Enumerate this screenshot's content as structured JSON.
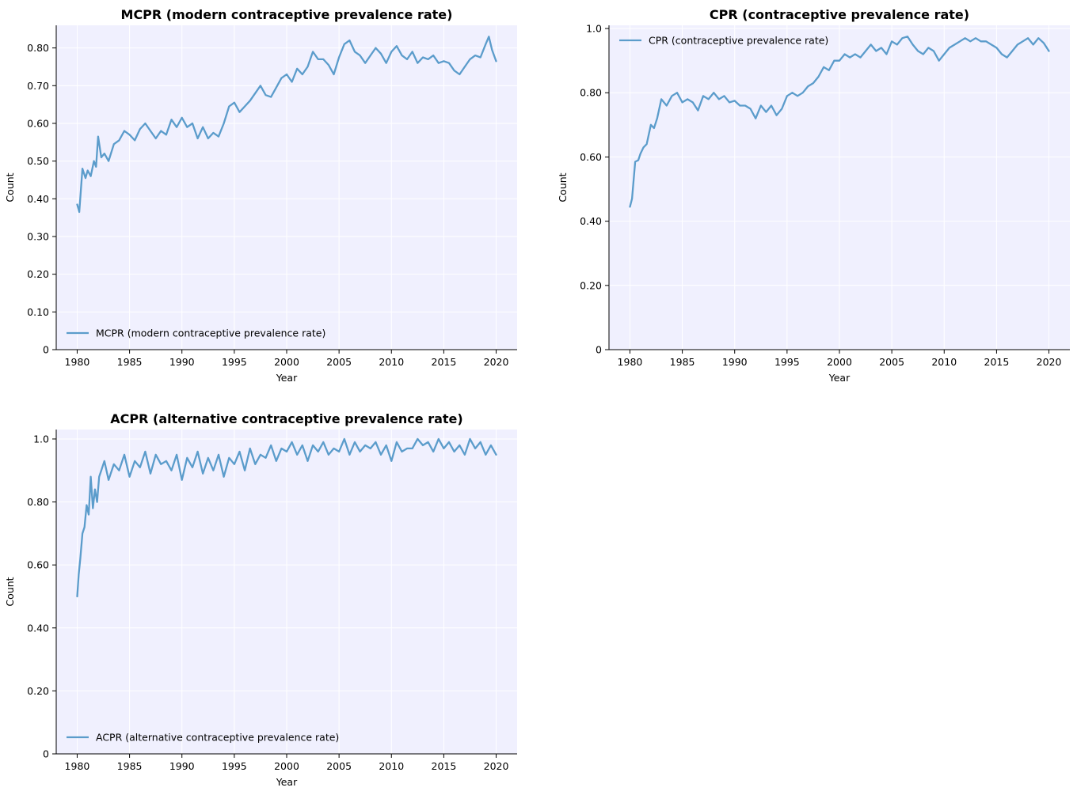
{
  "chart_data": [
    {
      "type": "line",
      "title": "MCPR (modern contraceptive prevalence rate)",
      "xlabel": "Year",
      "ylabel": "Count",
      "xlim": [
        1978,
        2022
      ],
      "ylim": [
        0,
        0.86
      ],
      "xticks": [
        1980,
        1985,
        1990,
        1995,
        2000,
        2005,
        2010,
        2015,
        2020
      ],
      "yticks": [
        0,
        0.1,
        0.2,
        0.3,
        0.4,
        0.5,
        0.6,
        0.7,
        0.8
      ],
      "ytick_labels": [
        "0",
        "0.10",
        "0.20",
        "0.30",
        "0.40",
        "0.50",
        "0.60",
        "0.70",
        "0.80"
      ],
      "grid": true,
      "legend": "lower-left",
      "color": "#5b9ccb",
      "series": [
        {
          "name": "MCPR (modern contraceptive prevalence rate)",
          "x": [
            1980,
            1980.2,
            1980.5,
            1980.8,
            1981,
            1981.3,
            1981.6,
            1981.8,
            1982,
            1982.3,
            1982.6,
            1983,
            1983.5,
            1984,
            1984.5,
            1985,
            1985.5,
            1986,
            1986.5,
            1987,
            1987.5,
            1988,
            1988.5,
            1989,
            1989.5,
            1990,
            1990.5,
            1991,
            1991.5,
            1992,
            1992.5,
            1993,
            1993.5,
            1994,
            1994.5,
            1995,
            1995.5,
            1996,
            1996.5,
            1997,
            1997.5,
            1998,
            1998.5,
            1999,
            1999.5,
            2000,
            2000.5,
            2001,
            2001.5,
            2002,
            2002.5,
            2003,
            2003.5,
            2004,
            2004.5,
            2005,
            2005.5,
            2006,
            2006.5,
            2007,
            2007.5,
            2008,
            2008.5,
            2009,
            2009.5,
            2010,
            2010.5,
            2011,
            2011.5,
            2012,
            2012.5,
            2013,
            2013.5,
            2014,
            2014.5,
            2015,
            2015.5,
            2016,
            2016.5,
            2017,
            2017.5,
            2018,
            2018.5,
            2019,
            2019.3,
            2019.6,
            2020
          ],
          "y": [
            0.385,
            0.365,
            0.48,
            0.455,
            0.475,
            0.46,
            0.5,
            0.485,
            0.565,
            0.51,
            0.52,
            0.5,
            0.545,
            0.555,
            0.58,
            0.57,
            0.555,
            0.585,
            0.6,
            0.58,
            0.56,
            0.58,
            0.57,
            0.61,
            0.59,
            0.615,
            0.59,
            0.6,
            0.56,
            0.59,
            0.56,
            0.575,
            0.565,
            0.6,
            0.645,
            0.655,
            0.63,
            0.645,
            0.66,
            0.68,
            0.7,
            0.675,
            0.67,
            0.695,
            0.72,
            0.73,
            0.71,
            0.745,
            0.73,
            0.75,
            0.79,
            0.77,
            0.77,
            0.755,
            0.73,
            0.775,
            0.81,
            0.82,
            0.79,
            0.78,
            0.76,
            0.78,
            0.8,
            0.785,
            0.76,
            0.79,
            0.805,
            0.78,
            0.77,
            0.79,
            0.76,
            0.775,
            0.77,
            0.78,
            0.76,
            0.765,
            0.76,
            0.74,
            0.73,
            0.75,
            0.77,
            0.78,
            0.775,
            0.81,
            0.83,
            0.795,
            0.765
          ]
        }
      ]
    },
    {
      "type": "line",
      "title": "CPR (contraceptive prevalence rate)",
      "xlabel": "Year",
      "ylabel": "Count",
      "xlim": [
        1978,
        2022
      ],
      "ylim": [
        0,
        1.01
      ],
      "xticks": [
        1980,
        1985,
        1990,
        1995,
        2000,
        2005,
        2010,
        2015,
        2020
      ],
      "yticks": [
        0,
        0.2,
        0.4,
        0.6,
        0.8,
        1.0
      ],
      "ytick_labels": [
        "0",
        "0.20",
        "0.40",
        "0.60",
        "0.80",
        "1.0"
      ],
      "grid": true,
      "legend": "upper-left",
      "color": "#5b9ccb",
      "series": [
        {
          "name": "CPR (contraceptive prevalence rate)",
          "x": [
            1980,
            1980.2,
            1980.5,
            1980.8,
            1981,
            1981.3,
            1981.6,
            1982,
            1982.3,
            1982.6,
            1983,
            1983.5,
            1984,
            1984.5,
            1985,
            1985.5,
            1986,
            1986.5,
            1987,
            1987.5,
            1988,
            1988.5,
            1989,
            1989.5,
            1990,
            1990.5,
            1991,
            1991.5,
            1992,
            1992.5,
            1993,
            1993.5,
            1994,
            1994.5,
            1995,
            1995.5,
            1996,
            1996.5,
            1997,
            1997.5,
            1998,
            1998.5,
            1999,
            1999.5,
            2000,
            2000.5,
            2001,
            2001.5,
            2002,
            2002.5,
            2003,
            2003.5,
            2004,
            2004.5,
            2005,
            2005.5,
            2006,
            2006.5,
            2007,
            2007.5,
            2008,
            2008.5,
            2009,
            2009.5,
            2010,
            2010.5,
            2011,
            2011.5,
            2012,
            2012.5,
            2013,
            2013.5,
            2014,
            2014.5,
            2015,
            2015.5,
            2016,
            2016.5,
            2017,
            2017.5,
            2018,
            2018.5,
            2019,
            2019.5,
            2020
          ],
          "y": [
            0.445,
            0.47,
            0.585,
            0.59,
            0.61,
            0.63,
            0.64,
            0.7,
            0.69,
            0.72,
            0.78,
            0.76,
            0.79,
            0.8,
            0.77,
            0.78,
            0.77,
            0.745,
            0.79,
            0.78,
            0.8,
            0.78,
            0.79,
            0.77,
            0.775,
            0.76,
            0.76,
            0.75,
            0.72,
            0.76,
            0.74,
            0.76,
            0.73,
            0.75,
            0.79,
            0.8,
            0.79,
            0.8,
            0.82,
            0.83,
            0.85,
            0.88,
            0.87,
            0.9,
            0.9,
            0.92,
            0.91,
            0.92,
            0.91,
            0.93,
            0.95,
            0.93,
            0.94,
            0.92,
            0.96,
            0.95,
            0.97,
            0.975,
            0.95,
            0.93,
            0.92,
            0.94,
            0.93,
            0.9,
            0.92,
            0.94,
            0.95,
            0.96,
            0.97,
            0.96,
            0.97,
            0.96,
            0.96,
            0.95,
            0.94,
            0.92,
            0.91,
            0.93,
            0.95,
            0.96,
            0.97,
            0.95,
            0.97,
            0.955,
            0.93
          ]
        }
      ]
    },
    {
      "type": "line",
      "title": "ACPR (alternative contraceptive prevalence rate)",
      "xlabel": "Year",
      "ylabel": "Count",
      "xlim": [
        1978,
        2022
      ],
      "ylim": [
        0,
        1.03
      ],
      "xticks": [
        1980,
        1985,
        1990,
        1995,
        2000,
        2005,
        2010,
        2015,
        2020
      ],
      "yticks": [
        0,
        0.2,
        0.4,
        0.6,
        0.8,
        1.0
      ],
      "ytick_labels": [
        "0",
        "0.20",
        "0.40",
        "0.60",
        "0.80",
        "1.0"
      ],
      "grid": true,
      "legend": "lower-left",
      "color": "#5b9ccb",
      "series": [
        {
          "name": "ACPR (alternative contraceptive prevalence rate)",
          "x": [
            1980,
            1980.15,
            1980.3,
            1980.5,
            1980.7,
            1980.9,
            1981.1,
            1981.3,
            1981.5,
            1981.7,
            1981.9,
            1982.1,
            1982.3,
            1982.6,
            1983,
            1983.5,
            1984,
            1984.5,
            1985,
            1985.5,
            1986,
            1986.5,
            1987,
            1987.5,
            1988,
            1988.5,
            1989,
            1989.5,
            1990,
            1990.5,
            1991,
            1991.5,
            1992,
            1992.5,
            1993,
            1993.5,
            1994,
            1994.5,
            1995,
            1995.5,
            1996,
            1996.5,
            1997,
            1997.5,
            1998,
            1998.5,
            1999,
            1999.5,
            2000,
            2000.5,
            2001,
            2001.5,
            2002,
            2002.5,
            2003,
            2003.5,
            2004,
            2004.5,
            2005,
            2005.5,
            2006,
            2006.5,
            2007,
            2007.5,
            2008,
            2008.5,
            2009,
            2009.5,
            2010,
            2010.5,
            2011,
            2011.5,
            2012,
            2012.5,
            2013,
            2013.5,
            2014,
            2014.5,
            2015,
            2015.5,
            2016,
            2016.5,
            2017,
            2017.5,
            2018,
            2018.5,
            2019,
            2019.5,
            2020
          ],
          "y": [
            0.5,
            0.57,
            0.62,
            0.7,
            0.72,
            0.79,
            0.76,
            0.88,
            0.78,
            0.84,
            0.8,
            0.88,
            0.9,
            0.93,
            0.87,
            0.92,
            0.9,
            0.95,
            0.88,
            0.93,
            0.91,
            0.96,
            0.89,
            0.95,
            0.92,
            0.93,
            0.9,
            0.95,
            0.87,
            0.94,
            0.91,
            0.96,
            0.89,
            0.94,
            0.9,
            0.95,
            0.88,
            0.94,
            0.92,
            0.96,
            0.9,
            0.97,
            0.92,
            0.95,
            0.94,
            0.98,
            0.93,
            0.97,
            0.96,
            0.99,
            0.95,
            0.98,
            0.93,
            0.98,
            0.96,
            0.99,
            0.95,
            0.97,
            0.96,
            1.0,
            0.95,
            0.99,
            0.96,
            0.98,
            0.97,
            0.99,
            0.95,
            0.98,
            0.93,
            0.99,
            0.96,
            0.97,
            0.97,
            1.0,
            0.98,
            0.99,
            0.96,
            1.0,
            0.97,
            0.99,
            0.96,
            0.98,
            0.95,
            1.0,
            0.97,
            0.99,
            0.95,
            0.98,
            0.95
          ]
        }
      ]
    }
  ]
}
